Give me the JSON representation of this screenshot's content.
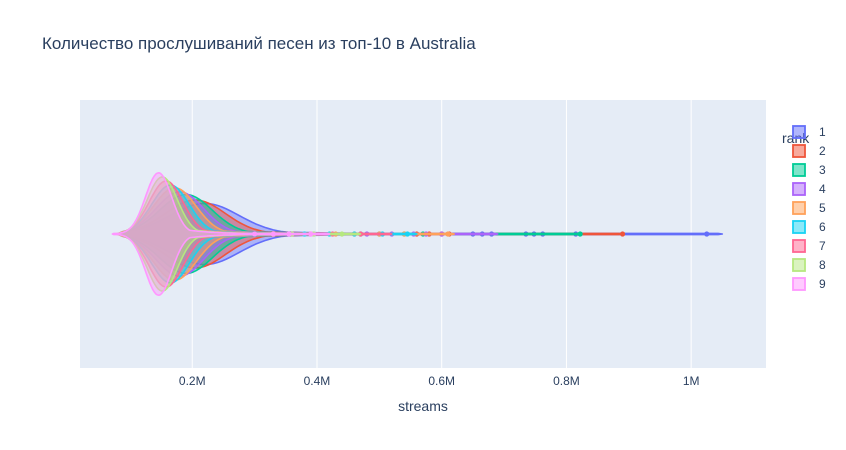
{
  "chart_data": {
    "type": "violin",
    "title": "Количество прослушиваний песен из топ-10 в Australia",
    "xlabel": "streams",
    "ylabel": "",
    "xlim": [
      20000,
      1120000
    ],
    "x_ticks": [
      {
        "value": 200000,
        "label": "0.2M"
      },
      {
        "value": 400000,
        "label": "0.4M"
      },
      {
        "value": 600000,
        "label": "0.6M"
      },
      {
        "value": 800000,
        "label": "0.8M"
      },
      {
        "value": 1000000,
        "label": "1M"
      }
    ],
    "grid": true,
    "legend": {
      "title": "rank",
      "placement": "right"
    },
    "series": [
      {
        "name": "1",
        "color": "#636efa",
        "min": 90000,
        "peak": 220000,
        "q_spread": 55000,
        "width": 0.45,
        "max": 1050000,
        "outliers": [
          650000,
          665000,
          680000,
          735000,
          748000,
          762000,
          815000,
          1025000
        ]
      },
      {
        "name": "2",
        "color": "#EF553B",
        "min": 88000,
        "peak": 205000,
        "q_spread": 48000,
        "width": 0.5,
        "max": 890000,
        "outliers": [
          560000,
          580000,
          600000,
          612000,
          890000
        ]
      },
      {
        "name": "3",
        "color": "#00cc96",
        "min": 85000,
        "peak": 190000,
        "q_spread": 42000,
        "width": 0.58,
        "max": 822000,
        "outliers": [
          470000,
          500000,
          540000,
          570000,
          822000
        ]
      },
      {
        "name": "4",
        "color": "#ab63fa",
        "min": 84000,
        "peak": 180000,
        "q_spread": 38000,
        "width": 0.62,
        "max": 690000,
        "outliers": [
          480000,
          520000,
          555000,
          575000,
          600000
        ]
      },
      {
        "name": "5",
        "color": "#FFA15A",
        "min": 83000,
        "peak": 172000,
        "q_spread": 34000,
        "width": 0.68,
        "max": 620000,
        "outliers": [
          430000,
          460000,
          500000,
          540000,
          610000
        ]
      },
      {
        "name": "6",
        "color": "#19d3f3",
        "min": 82000,
        "peak": 165000,
        "q_spread": 30000,
        "width": 0.72,
        "max": 560000,
        "outliers": [
          380000,
          420000,
          460000,
          505000,
          545000
        ]
      },
      {
        "name": "7",
        "color": "#FF6692",
        "min": 80000,
        "peak": 158000,
        "q_spread": 27000,
        "width": 0.78,
        "max": 520000,
        "outliers": [
          360000,
          390000,
          425000,
          470000
        ]
      },
      {
        "name": "8",
        "color": "#B6E880",
        "min": 78000,
        "peak": 152000,
        "q_spread": 24000,
        "width": 0.84,
        "max": 470000,
        "outliers": [
          330000,
          360000,
          395000,
          440000
        ]
      },
      {
        "name": "9",
        "color": "#FF97FF",
        "min": 72000,
        "peak": 146000,
        "q_spread": 21000,
        "width": 0.9,
        "max": 420000,
        "outliers": [
          300000,
          330000,
          355000,
          390000
        ]
      }
    ]
  }
}
